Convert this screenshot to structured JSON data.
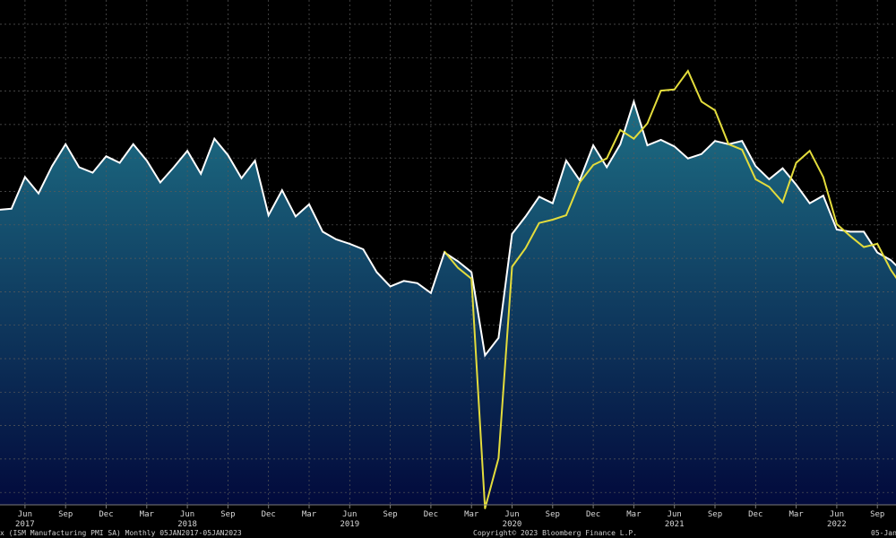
{
  "chart_data": {
    "type": "area",
    "title": "",
    "xlabel": "",
    "ylabel": "",
    "grid": true,
    "x_ticks": [
      {
        "month": "Jun",
        "year": "2017",
        "date": "2017-06"
      },
      {
        "month": "Sep",
        "year": "",
        "date": "2017-09"
      },
      {
        "month": "Dec",
        "year": "",
        "date": "2017-12"
      },
      {
        "month": "Mar",
        "year": "",
        "date": "2018-03"
      },
      {
        "month": "Jun",
        "year": "2018",
        "date": "2018-06"
      },
      {
        "month": "Sep",
        "year": "",
        "date": "2018-09"
      },
      {
        "month": "Dec",
        "year": "",
        "date": "2018-12"
      },
      {
        "month": "Mar",
        "year": "",
        "date": "2019-03"
      },
      {
        "month": "Jun",
        "year": "2019",
        "date": "2019-06"
      },
      {
        "month": "Sep",
        "year": "",
        "date": "2019-09"
      },
      {
        "month": "Dec",
        "year": "",
        "date": "2019-12"
      },
      {
        "month": "Mar",
        "year": "",
        "date": "2020-03"
      },
      {
        "month": "Jun",
        "year": "2020",
        "date": "2020-06"
      },
      {
        "month": "Sep",
        "year": "",
        "date": "2020-09"
      },
      {
        "month": "Dec",
        "year": "",
        "date": "2020-12"
      },
      {
        "month": "Mar",
        "year": "",
        "date": "2021-03"
      },
      {
        "month": "Jun",
        "year": "2021",
        "date": "2021-06"
      },
      {
        "month": "Sep",
        "year": "",
        "date": "2021-09"
      },
      {
        "month": "Dec",
        "year": "",
        "date": "2021-12"
      },
      {
        "month": "Mar",
        "year": "",
        "date": "2022-03"
      },
      {
        "month": "Jun",
        "year": "2022",
        "date": "2022-06"
      },
      {
        "month": "Sep",
        "year": "",
        "date": "2022-09"
      }
    ],
    "series": [
      {
        "name": "ISM Manufacturing PMI SA",
        "color": "#ffffff",
        "fill": "gradient-teal",
        "x": [
          "2017-04",
          "2017-05",
          "2017-06",
          "2017-07",
          "2017-08",
          "2017-09",
          "2017-10",
          "2017-11",
          "2017-12",
          "2018-01",
          "2018-02",
          "2018-03",
          "2018-04",
          "2018-05",
          "2018-06",
          "2018-07",
          "2018-08",
          "2018-09",
          "2018-10",
          "2018-11",
          "2018-12",
          "2019-01",
          "2019-02",
          "2019-03",
          "2019-04",
          "2019-05",
          "2019-06",
          "2019-07",
          "2019-08",
          "2019-09",
          "2019-10",
          "2019-11",
          "2019-12",
          "2020-01",
          "2020-02",
          "2020-03",
          "2020-04",
          "2020-05",
          "2020-06",
          "2020-07",
          "2020-08",
          "2020-09",
          "2020-10",
          "2020-11",
          "2020-12",
          "2021-01",
          "2021-02",
          "2021-03",
          "2021-04",
          "2021-05",
          "2021-06",
          "2021-07",
          "2021-08",
          "2021-09",
          "2021-10",
          "2021-11",
          "2021-12",
          "2022-01",
          "2022-02",
          "2022-03",
          "2022-04",
          "2022-05",
          "2022-06",
          "2022-07",
          "2022-08",
          "2022-09",
          "2022-10",
          "2022-11",
          "2022-12"
        ],
        "values": [
          54.8,
          54.9,
          57.8,
          56.3,
          58.8,
          60.8,
          58.7,
          58.2,
          59.7,
          59.1,
          60.8,
          59.3,
          57.3,
          58.7,
          60.2,
          58.1,
          61.3,
          59.8,
          57.7,
          59.3,
          54.3,
          56.6,
          54.2,
          55.3,
          52.8,
          52.1,
          51.7,
          51.2,
          49.1,
          47.8,
          48.3,
          48.1,
          47.2,
          50.9,
          50.1,
          49.1,
          41.5,
          43.1,
          52.6,
          54.2,
          56.0,
          55.4,
          59.3,
          57.5,
          60.7,
          58.7,
          60.8,
          64.7,
          60.7,
          61.2,
          60.6,
          59.5,
          59.9,
          61.1,
          60.8,
          61.1,
          58.8,
          57.6,
          58.6,
          57.1,
          55.4,
          56.1,
          53.0,
          52.8,
          52.8,
          50.9,
          50.2,
          49.0,
          48.4
        ]
      },
      {
        "name": "",
        "color": "#e3dc3c",
        "fill": "none",
        "x": [
          "2020-01",
          "2020-02",
          "2020-03",
          "2020-04",
          "2020-05",
          "2020-06",
          "2020-07",
          "2020-08",
          "2020-09",
          "2020-10",
          "2020-11",
          "2020-12",
          "2021-01",
          "2021-02",
          "2021-03",
          "2021-04",
          "2021-05",
          "2021-06",
          "2021-07",
          "2021-08",
          "2021-09",
          "2021-10",
          "2021-11",
          "2021-12",
          "2022-01",
          "2022-02",
          "2022-03",
          "2022-04",
          "2022-05",
          "2022-06",
          "2022-07",
          "2022-08",
          "2022-09",
          "2022-10",
          "2022-11",
          "2022-12"
        ],
        "values": [
          51.0,
          49.5,
          48.5,
          27.5,
          32.1,
          49.6,
          51.3,
          53.6,
          53.9,
          54.3,
          57.3,
          58.9,
          59.5,
          62.1,
          61.3,
          62.7,
          65.7,
          65.8,
          67.5,
          64.7,
          63.9,
          60.8,
          60.3,
          57.6,
          56.9,
          55.5,
          59.1,
          60.2,
          57.8,
          53.5,
          52.4,
          51.4,
          51.7,
          49.3,
          47.5,
          44.2
        ]
      }
    ],
    "xlim": [
      "2017-04",
      "2022-12"
    ],
    "ylim": [
      25,
      72
    ]
  },
  "footer": {
    "left": "x (ISM Manufacturing PMI SA)  Monthly 05JAN2017-05JAN2023",
    "center": "Copyright© 2023 Bloomberg Finance L.P.",
    "right": "05-Jan"
  },
  "colors": {
    "background": "#000000",
    "fill_top": "#1d6e84",
    "fill_bottom": "#020a3c",
    "grid": "#5a5a5a",
    "axis_text": "#d9d9d9"
  }
}
